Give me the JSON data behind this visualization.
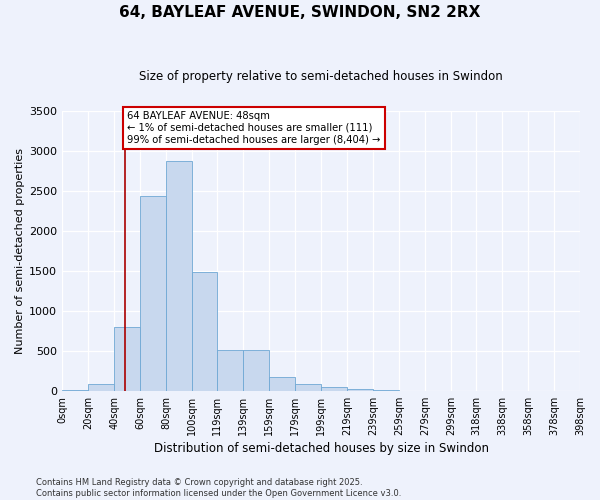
{
  "title": "64, BAYLEAF AVENUE, SWINDON, SN2 2RX",
  "subtitle": "Size of property relative to semi-detached houses in Swindon",
  "xlabel": "Distribution of semi-detached houses by size in Swindon",
  "ylabel": "Number of semi-detached properties",
  "footer_line1": "Contains HM Land Registry data © Crown copyright and database right 2025.",
  "footer_line2": "Contains public sector information licensed under the Open Government Licence v3.0.",
  "annotation_title": "64 BAYLEAF AVENUE: 48sqm",
  "annotation_line1": "← 1% of semi-detached houses are smaller (111)",
  "annotation_line2": "99% of semi-detached houses are larger (8,404) →",
  "subject_sqm": 48,
  "bar_color": "#c8d8ee",
  "bar_edge_color": "#6fa8d4",
  "vline_color": "#aa0000",
  "background_color": "#eef2fc",
  "bin_edges": [
    0,
    20,
    40,
    60,
    80,
    100,
    119,
    139,
    159,
    179,
    199,
    219,
    239,
    259,
    279,
    299,
    318,
    338,
    358,
    378,
    398
  ],
  "categories": [
    "0sqm",
    "20sqm",
    "40sqm",
    "60sqm",
    "80sqm",
    "100sqm",
    "119sqm",
    "139sqm",
    "159sqm",
    "179sqm",
    "199sqm",
    "219sqm",
    "239sqm",
    "259sqm",
    "279sqm",
    "299sqm",
    "318sqm",
    "338sqm",
    "358sqm",
    "378sqm",
    "398sqm"
  ],
  "values": [
    15,
    80,
    800,
    2430,
    2870,
    1490,
    510,
    510,
    175,
    80,
    50,
    20,
    5,
    3,
    2,
    1,
    1,
    0,
    0,
    0
  ],
  "ylim": [
    0,
    3500
  ],
  "yticks": [
    0,
    500,
    1000,
    1500,
    2000,
    2500,
    3000,
    3500
  ]
}
